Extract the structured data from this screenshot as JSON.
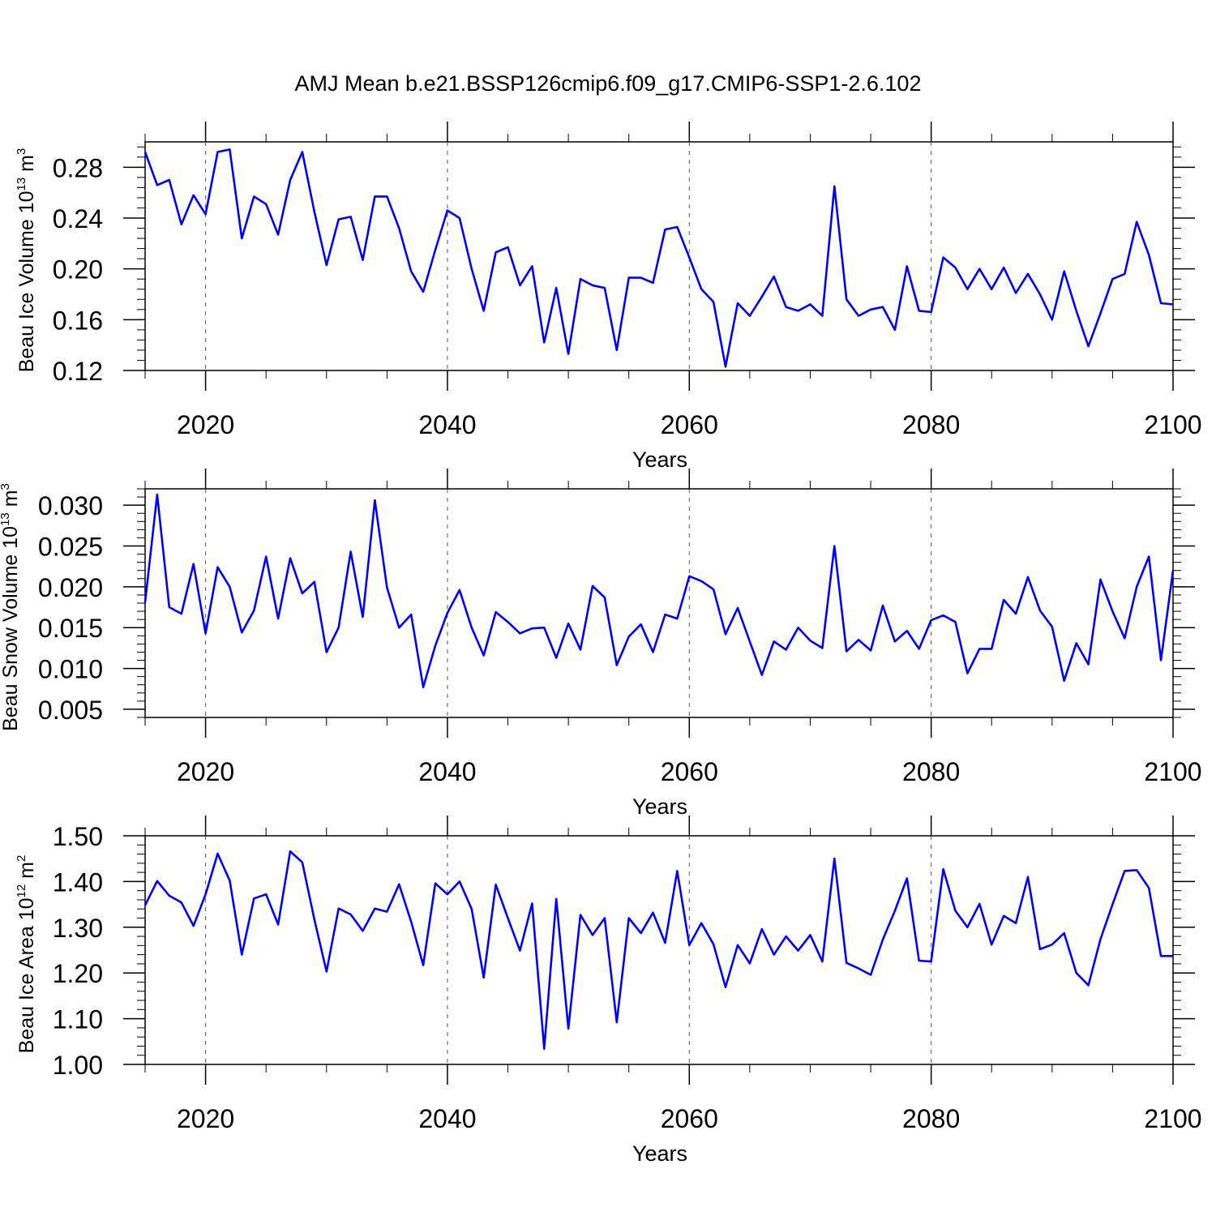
{
  "title": "AMJ Mean b.e21.BSSP126cmip6.f09_g17.CMIP6-SSP1-2.6.102",
  "colors": {
    "series": "#0000ff",
    "axis": "#000000",
    "gridline": "#555555"
  },
  "chart_data": [
    {
      "type": "line",
      "xlabel": "Years",
      "ylabel": {
        "text": "Beau Ice Volume 10",
        "sup": "13",
        "unit": " m",
        "unit_sup": "3"
      },
      "xlim": [
        2015,
        2100
      ],
      "ylim": [
        0.12,
        0.3
      ],
      "xticks": [
        2020,
        2040,
        2060,
        2080,
        2100
      ],
      "xtick_labels": [
        "2020",
        "2040",
        "2060",
        "2080",
        "2100"
      ],
      "yticks": [
        0.12,
        0.16,
        0.2,
        0.24,
        0.28
      ],
      "ytick_labels": [
        "0.12",
        "0.16",
        "0.20",
        "0.24",
        "0.28"
      ],
      "grid": "vertical dashed at major x ticks",
      "x": [
        2015,
        2016,
        2017,
        2018,
        2019,
        2020,
        2021,
        2022,
        2023,
        2024,
        2025,
        2026,
        2027,
        2028,
        2029,
        2030,
        2031,
        2032,
        2033,
        2034,
        2035,
        2036,
        2037,
        2038,
        2039,
        2040,
        2041,
        2042,
        2043,
        2044,
        2045,
        2046,
        2047,
        2048,
        2049,
        2050,
        2051,
        2052,
        2053,
        2054,
        2055,
        2056,
        2057,
        2058,
        2059,
        2060,
        2061,
        2062,
        2063,
        2064,
        2065,
        2066,
        2067,
        2068,
        2069,
        2070,
        2071,
        2072,
        2073,
        2074,
        2075,
        2076,
        2077,
        2078,
        2079,
        2080,
        2081,
        2082,
        2083,
        2084,
        2085,
        2086,
        2087,
        2088,
        2089,
        2090,
        2091,
        2092,
        2093,
        2094,
        2095,
        2096,
        2097,
        2098,
        2099,
        2100
      ],
      "series": [
        {
          "values": [
            0.292,
            0.266,
            0.27,
            0.235,
            0.258,
            0.243,
            0.292,
            0.294,
            0.224,
            0.257,
            0.251,
            0.227,
            0.27,
            0.292,
            0.245,
            0.203,
            0.239,
            0.241,
            0.207,
            0.257,
            0.257,
            0.232,
            0.198,
            0.182,
            0.215,
            0.246,
            0.24,
            0.2,
            0.167,
            0.213,
            0.217,
            0.187,
            0.202,
            0.142,
            0.185,
            0.133,
            0.192,
            0.187,
            0.185,
            0.136,
            0.193,
            0.193,
            0.189,
            0.231,
            0.233,
            0.209,
            0.184,
            0.174,
            0.123,
            0.173,
            0.163,
            0.178,
            0.194,
            0.17,
            0.167,
            0.172,
            0.163,
            0.265,
            0.176,
            0.163,
            0.168,
            0.17,
            0.152,
            0.202,
            0.167,
            0.166,
            0.209,
            0.201,
            0.184,
            0.2,
            0.184,
            0.201,
            0.181,
            0.196,
            0.18,
            0.16,
            0.198,
            0.167,
            0.139,
            0.165,
            0.192,
            0.196,
            0.237,
            0.211,
            0.173,
            0.172
          ]
        }
      ]
    },
    {
      "type": "line",
      "xlabel": "Years",
      "ylabel": {
        "text": "Beau Snow Volume 10",
        "sup": "13",
        "unit": " m",
        "unit_sup": "3"
      },
      "xlim": [
        2015,
        2100
      ],
      "ylim": [
        0.004,
        0.032
      ],
      "xticks": [
        2020,
        2040,
        2060,
        2080,
        2100
      ],
      "xtick_labels": [
        "2020",
        "2040",
        "2060",
        "2080",
        "2100"
      ],
      "yticks": [
        0.005,
        0.01,
        0.015,
        0.02,
        0.025,
        0.03
      ],
      "ytick_labels": [
        "0.005",
        "0.010",
        "0.015",
        "0.020",
        "0.025",
        "0.030"
      ],
      "grid": "vertical dashed at major x ticks",
      "x": [
        2015,
        2016,
        2017,
        2018,
        2019,
        2020,
        2021,
        2022,
        2023,
        2024,
        2025,
        2026,
        2027,
        2028,
        2029,
        2030,
        2031,
        2032,
        2033,
        2034,
        2035,
        2036,
        2037,
        2038,
        2039,
        2040,
        2041,
        2042,
        2043,
        2044,
        2045,
        2046,
        2047,
        2048,
        2049,
        2050,
        2051,
        2052,
        2053,
        2054,
        2055,
        2056,
        2057,
        2058,
        2059,
        2060,
        2061,
        2062,
        2063,
        2064,
        2065,
        2066,
        2067,
        2068,
        2069,
        2070,
        2071,
        2072,
        2073,
        2074,
        2075,
        2076,
        2077,
        2078,
        2079,
        2080,
        2081,
        2082,
        2083,
        2084,
        2085,
        2086,
        2087,
        2088,
        2089,
        2090,
        2091,
        2092,
        2093,
        2094,
        2095,
        2096,
        2097,
        2098,
        2099,
        2100
      ],
      "series": [
        {
          "values": [
            0.0181,
            0.0313,
            0.0175,
            0.0167,
            0.0228,
            0.0143,
            0.0224,
            0.02,
            0.0144,
            0.0171,
            0.0237,
            0.0161,
            0.0235,
            0.0192,
            0.0206,
            0.012,
            0.015,
            0.0243,
            0.0163,
            0.0306,
            0.0199,
            0.015,
            0.0166,
            0.0077,
            0.0128,
            0.0168,
            0.0196,
            0.015,
            0.0116,
            0.0169,
            0.0157,
            0.0143,
            0.0149,
            0.015,
            0.0113,
            0.0155,
            0.0123,
            0.0201,
            0.0187,
            0.0104,
            0.0139,
            0.0154,
            0.012,
            0.0166,
            0.0161,
            0.0213,
            0.0207,
            0.0197,
            0.0142,
            0.0174,
            0.0133,
            0.0092,
            0.0133,
            0.0123,
            0.015,
            0.0134,
            0.0125,
            0.025,
            0.0121,
            0.0135,
            0.0122,
            0.0177,
            0.0133,
            0.0146,
            0.0124,
            0.0159,
            0.0165,
            0.0157,
            0.0094,
            0.0124,
            0.0124,
            0.0184,
            0.0167,
            0.0212,
            0.0171,
            0.0151,
            0.0085,
            0.0131,
            0.0105,
            0.0209,
            0.017,
            0.0137,
            0.02,
            0.0237,
            0.011,
            0.022
          ]
        }
      ]
    },
    {
      "type": "line",
      "xlabel": "Years",
      "ylabel": {
        "text": "Beau Ice Area 10",
        "sup": "12",
        "unit": " m",
        "unit_sup": "2"
      },
      "xlim": [
        2015,
        2100
      ],
      "ylim": [
        1.0,
        1.5
      ],
      "xticks": [
        2020,
        2040,
        2060,
        2080,
        2100
      ],
      "xtick_labels": [
        "2020",
        "2040",
        "2060",
        "2080",
        "2100"
      ],
      "yticks": [
        1.0,
        1.1,
        1.2,
        1.3,
        1.4,
        1.5
      ],
      "ytick_labels": [
        "1.00",
        "1.10",
        "1.20",
        "1.30",
        "1.40",
        "1.50"
      ],
      "grid": "vertical dashed at major x ticks",
      "x": [
        2015,
        2016,
        2017,
        2018,
        2019,
        2020,
        2021,
        2022,
        2023,
        2024,
        2025,
        2026,
        2027,
        2028,
        2029,
        2030,
        2031,
        2032,
        2033,
        2034,
        2035,
        2036,
        2037,
        2038,
        2039,
        2040,
        2041,
        2042,
        2043,
        2044,
        2045,
        2046,
        2047,
        2048,
        2049,
        2050,
        2051,
        2052,
        2053,
        2054,
        2055,
        2056,
        2057,
        2058,
        2059,
        2060,
        2061,
        2062,
        2063,
        2064,
        2065,
        2066,
        2067,
        2068,
        2069,
        2070,
        2071,
        2072,
        2073,
        2074,
        2075,
        2076,
        2077,
        2078,
        2079,
        2080,
        2081,
        2082,
        2083,
        2084,
        2085,
        2086,
        2087,
        2088,
        2089,
        2090,
        2091,
        2092,
        2093,
        2094,
        2095,
        2096,
        2097,
        2098,
        2099,
        2100
      ],
      "series": [
        {
          "values": [
            1.348,
            1.401,
            1.369,
            1.354,
            1.303,
            1.372,
            1.461,
            1.402,
            1.24,
            1.363,
            1.372,
            1.306,
            1.466,
            1.442,
            1.317,
            1.203,
            1.341,
            1.328,
            1.292,
            1.341,
            1.334,
            1.394,
            1.312,
            1.217,
            1.396,
            1.372,
            1.4,
            1.34,
            1.19,
            1.393,
            1.32,
            1.249,
            1.352,
            1.034,
            1.362,
            1.078,
            1.327,
            1.283,
            1.32,
            1.092,
            1.32,
            1.287,
            1.332,
            1.266,
            1.423,
            1.261,
            1.309,
            1.263,
            1.169,
            1.261,
            1.221,
            1.296,
            1.24,
            1.28,
            1.249,
            1.283,
            1.225,
            1.45,
            1.222,
            1.21,
            1.196,
            1.273,
            1.336,
            1.407,
            1.227,
            1.225,
            1.427,
            1.336,
            1.3,
            1.351,
            1.262,
            1.325,
            1.309,
            1.41,
            1.252,
            1.262,
            1.287,
            1.2,
            1.173,
            1.274,
            1.35,
            1.423,
            1.425,
            1.386,
            1.237,
            1.237
          ]
        }
      ]
    }
  ]
}
